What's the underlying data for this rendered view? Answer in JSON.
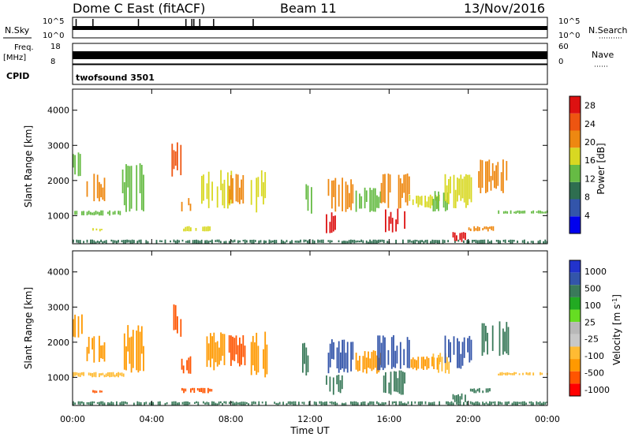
{
  "header": {
    "radar": "Dome C East (fitACF)",
    "beam": "Beam 11",
    "date": "13/Nov/2016"
  },
  "top_panels": {
    "nsky_label": "N.Sky",
    "nsky_ticks": [
      "10^5",
      "10^0"
    ],
    "nsearch_label": "N.Search",
    "nsearch_ticks": [
      "10^5",
      "10^0"
    ],
    "freq_label_1": "Freq.",
    "freq_label_2": "[MHz]",
    "freq_ticks": [
      "18",
      "8"
    ],
    "nave_label": "Nave",
    "nave_ticks": [
      "60",
      "0"
    ],
    "cpid_label": "CPID",
    "cpid_value": "twofsound 3501"
  },
  "colors": {
    "power_scale": [
      "#0000ee",
      "#3355aa",
      "#2e6e50",
      "#66bb44",
      "#d8d822",
      "#ee8811",
      "#ee5511",
      "#dd1111"
    ],
    "velocity_scale": [
      "#ff0000",
      "#ff5500",
      "#ff9900",
      "#ffbb33",
      "#c8c8c8",
      "#b8b8b8",
      "#66dd22",
      "#22aa22",
      "#3a7a5a",
      "#3355aa",
      "#2233cc"
    ]
  },
  "chart_data": [
    {
      "type": "heatmap",
      "name": "power",
      "ylabel": "Slant Range [km]",
      "xlabel": "",
      "xticks": [
        "00:00",
        "04:00",
        "08:00",
        "12:00",
        "16:00",
        "20:00",
        "00:00"
      ],
      "yticks": [
        "1000",
        "2000",
        "3000",
        "4000"
      ],
      "ylim": [
        200,
        4600
      ],
      "xlim_hours": [
        0,
        24
      ],
      "colorbar": {
        "label": "Power [dB]",
        "ticks": [
          "4",
          "8",
          "12",
          "16",
          "20",
          "24",
          "28"
        ],
        "range": [
          0,
          30
        ]
      },
      "echo_regions": [
        {
          "t0": 0.0,
          "t1": 24.0,
          "r0": 200,
          "r1": 320,
          "level": 8
        },
        {
          "t0": 0.0,
          "t1": 2.6,
          "r0": 1000,
          "r1": 1150,
          "level": 12
        },
        {
          "t0": 0.7,
          "t1": 1.6,
          "r0": 1400,
          "r1": 2200,
          "level": 20
        },
        {
          "t0": 1.0,
          "t1": 1.5,
          "r0": 550,
          "r1": 650,
          "level": 16
        },
        {
          "t0": 0.0,
          "t1": 0.5,
          "r0": 2100,
          "r1": 2800,
          "level": 12
        },
        {
          "t0": 2.5,
          "t1": 3.6,
          "r0": 1100,
          "r1": 2500,
          "level": 12
        },
        {
          "t0": 5.0,
          "t1": 5.5,
          "r0": 2100,
          "r1": 3100,
          "level": 24
        },
        {
          "t0": 5.4,
          "t1": 6.0,
          "r0": 1100,
          "r1": 1600,
          "level": 20
        },
        {
          "t0": 5.5,
          "t1": 7.0,
          "r0": 550,
          "r1": 700,
          "level": 16
        },
        {
          "t0": 6.5,
          "t1": 8.0,
          "r0": 1200,
          "r1": 2300,
          "level": 16
        },
        {
          "t0": 7.8,
          "t1": 8.7,
          "r0": 1300,
          "r1": 2200,
          "level": 20
        },
        {
          "t0": 9.0,
          "t1": 9.8,
          "r0": 1000,
          "r1": 2300,
          "level": 16
        },
        {
          "t0": 11.6,
          "t1": 12.1,
          "r0": 1000,
          "r1": 2000,
          "level": 12
        },
        {
          "t0": 12.8,
          "t1": 13.6,
          "r0": 500,
          "r1": 1100,
          "level": 28
        },
        {
          "t0": 12.9,
          "t1": 14.2,
          "r0": 1100,
          "r1": 2100,
          "level": 20
        },
        {
          "t0": 14.3,
          "t1": 15.6,
          "r0": 1100,
          "r1": 1800,
          "level": 12
        },
        {
          "t0": 15.7,
          "t1": 16.8,
          "r0": 500,
          "r1": 1200,
          "level": 28
        },
        {
          "t0": 15.4,
          "t1": 17.0,
          "r0": 1200,
          "r1": 2200,
          "level": 20
        },
        {
          "t0": 17.0,
          "t1": 18.5,
          "r0": 1200,
          "r1": 1600,
          "level": 16
        },
        {
          "t0": 18.2,
          "t1": 19.0,
          "r0": 1100,
          "r1": 1700,
          "level": 12
        },
        {
          "t0": 19.2,
          "t1": 19.9,
          "r0": 250,
          "r1": 550,
          "level": 28
        },
        {
          "t0": 18.8,
          "t1": 20.2,
          "r0": 1200,
          "r1": 2200,
          "level": 16
        },
        {
          "t0": 20.0,
          "t1": 21.3,
          "r0": 550,
          "r1": 700,
          "level": 20
        },
        {
          "t0": 20.5,
          "t1": 22.0,
          "r0": 1600,
          "r1": 2600,
          "level": 20
        },
        {
          "t0": 21.5,
          "t1": 24.0,
          "r0": 1050,
          "r1": 1150,
          "level": 12
        }
      ]
    },
    {
      "type": "heatmap",
      "name": "velocity",
      "ylabel": "Slant Range [km]",
      "xlabel": "Time UT",
      "xticks": [
        "00:00",
        "04:00",
        "08:00",
        "12:00",
        "16:00",
        "20:00",
        "00:00"
      ],
      "yticks": [
        "1000",
        "2000",
        "3000",
        "4000"
      ],
      "ylim": [
        200,
        4600
      ],
      "xlim_hours": [
        0,
        24
      ],
      "colorbar": {
        "label": "Velocity [m s^-1]",
        "ticks": [
          "1000",
          "500",
          "100",
          "25",
          "-25",
          "-100",
          "-500",
          "-1000"
        ]
      },
      "echo_regions": [
        {
          "t0": 0.0,
          "t1": 24.0,
          "r0": 200,
          "r1": 320,
          "vel": 100
        },
        {
          "t0": 0.0,
          "t1": 2.6,
          "r0": 1000,
          "r1": 1150,
          "vel": -25
        },
        {
          "t0": 0.7,
          "t1": 1.6,
          "r0": 1400,
          "r1": 2200,
          "vel": -100
        },
        {
          "t0": 1.0,
          "t1": 1.5,
          "r0": 550,
          "r1": 650,
          "vel": -500
        },
        {
          "t0": 0.0,
          "t1": 0.5,
          "r0": 2100,
          "r1": 2800,
          "vel": -100
        },
        {
          "t0": 2.5,
          "t1": 3.6,
          "r0": 1100,
          "r1": 2500,
          "vel": -100
        },
        {
          "t0": 5.0,
          "t1": 5.5,
          "r0": 2100,
          "r1": 3100,
          "vel": -500
        },
        {
          "t0": 5.4,
          "t1": 6.0,
          "r0": 1100,
          "r1": 1600,
          "vel": -500
        },
        {
          "t0": 5.5,
          "t1": 7.0,
          "r0": 550,
          "r1": 700,
          "vel": -500
        },
        {
          "t0": 6.5,
          "t1": 8.0,
          "r0": 1200,
          "r1": 2300,
          "vel": -100
        },
        {
          "t0": 7.8,
          "t1": 8.7,
          "r0": 1300,
          "r1": 2200,
          "vel": -500
        },
        {
          "t0": 9.0,
          "t1": 9.8,
          "r0": 1000,
          "r1": 2300,
          "vel": -100
        },
        {
          "t0": 11.6,
          "t1": 12.1,
          "r0": 1000,
          "r1": 2000,
          "vel": 100
        },
        {
          "t0": 12.8,
          "t1": 13.6,
          "r0": 500,
          "r1": 1100,
          "vel": 100
        },
        {
          "t0": 12.9,
          "t1": 14.2,
          "r0": 1100,
          "r1": 2100,
          "vel": 500
        },
        {
          "t0": 14.3,
          "t1": 15.6,
          "r0": 1100,
          "r1": 1800,
          "vel": -100
        },
        {
          "t0": 15.7,
          "t1": 16.8,
          "r0": 500,
          "r1": 1200,
          "vel": 100
        },
        {
          "t0": 15.4,
          "t1": 17.0,
          "r0": 1200,
          "r1": 2200,
          "vel": 500
        },
        {
          "t0": 17.0,
          "t1": 18.5,
          "r0": 1200,
          "r1": 1600,
          "vel": -100
        },
        {
          "t0": 18.2,
          "t1": 19.0,
          "r0": 1100,
          "r1": 1700,
          "vel": -25
        },
        {
          "t0": 19.2,
          "t1": 19.9,
          "r0": 250,
          "r1": 550,
          "vel": 100
        },
        {
          "t0": 18.8,
          "t1": 20.2,
          "r0": 1200,
          "r1": 2200,
          "vel": 500
        },
        {
          "t0": 20.0,
          "t1": 21.3,
          "r0": 550,
          "r1": 700,
          "vel": 100
        },
        {
          "t0": 20.5,
          "t1": 22.0,
          "r0": 1600,
          "r1": 2600,
          "vel": 100
        },
        {
          "t0": 21.5,
          "t1": 24.0,
          "r0": 1050,
          "r1": 1150,
          "vel": -25
        }
      ]
    }
  ]
}
